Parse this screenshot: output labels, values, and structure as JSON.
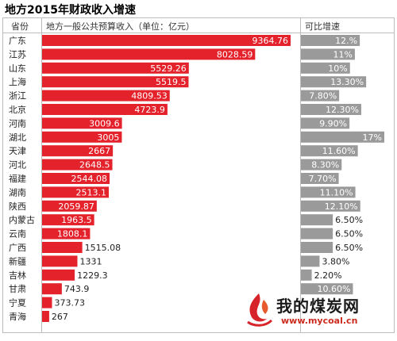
{
  "title": "地方2015年财政收入增速",
  "headers": {
    "province": "省份",
    "revenue": "地方一般公共预算收入（单位：亿元）",
    "growth": "可比增速"
  },
  "chart_data": {
    "type": "bar",
    "orientation": "horizontal",
    "title": "地方2015年财政收入增速",
    "categories": [
      "广东",
      "江苏",
      "山东",
      "上海",
      "浙江",
      "北京",
      "河南",
      "湖北",
      "天津",
      "河北",
      "福建",
      "湖南",
      "陕西",
      "内蒙古",
      "云南",
      "广西",
      "新疆",
      "吉林",
      "甘肃",
      "宁夏",
      "青海"
    ],
    "series": [
      {
        "name": "地方一般公共预算收入（单位：亿元）",
        "values": [
          9364.76,
          8028.59,
          5529.26,
          5519.5,
          4809.53,
          4723.9,
          3009.6,
          3005,
          2667,
          2648.5,
          2544.08,
          2513.1,
          2059.87,
          1963.5,
          1808.1,
          1515.08,
          1331,
          1229.3,
          743.9,
          373.73,
          267
        ],
        "labels": [
          "9364.76",
          "8028.59",
          "5529.26",
          "5519.5",
          "4809.53",
          "4723.9",
          "3009.6",
          "3005",
          "2667",
          "2648.5",
          "2544.08",
          "2513.1",
          "2059.87",
          "1963.5",
          "1808.1",
          "1515.08",
          "1331",
          "1229.3",
          "743.9",
          "373.73",
          "267"
        ],
        "color": "#e4222b"
      },
      {
        "name": "可比增速",
        "values": [
          12,
          11,
          10,
          13.3,
          7.8,
          12.3,
          9.9,
          17,
          11.6,
          8.3,
          7.7,
          11.1,
          12.1,
          6.5,
          6.5,
          6.5,
          3.8,
          2.2,
          10.6,
          null,
          null
        ],
        "labels": [
          "12.%",
          "11%",
          "10%",
          "13.30%",
          "7.80%",
          "12.30%",
          "9.90%",
          "17%",
          "11.60%",
          "8.30%",
          "7.70%",
          "11.10%",
          "12.10%",
          "6.50%",
          "6.50%",
          "6.50%",
          "3.80%",
          "2.20%",
          "10.60%",
          "",
          ""
        ],
        "color": "#9a9a9a"
      }
    ]
  },
  "logo": {
    "name": "我的煤炭网",
    "url": "www.mycoal.cn"
  },
  "colors": {
    "revenue_bar": "#e4222b",
    "growth_bar": "#9a9a9a",
    "label_light": "#ffffff",
    "label_dark": "#222222"
  }
}
